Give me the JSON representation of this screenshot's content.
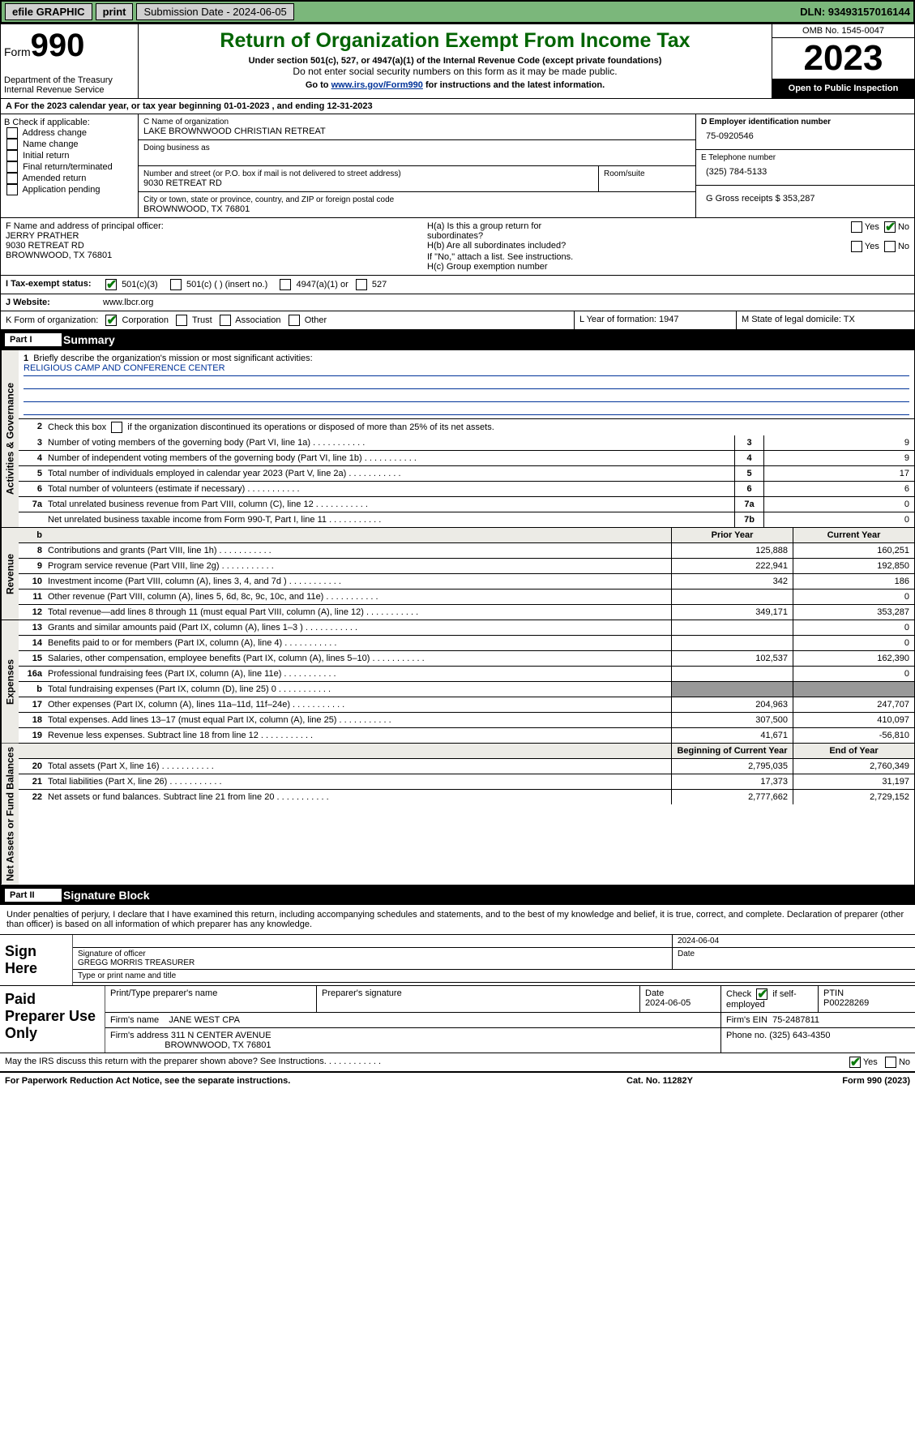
{
  "topbar": {
    "efile": "efile GRAPHIC",
    "print": "print",
    "subm": "Submission Date - 2024-06-05",
    "dln": "DLN: 93493157016144"
  },
  "header": {
    "form_word": "Form",
    "form_num": "990",
    "title": "Return of Organization Exempt From Income Tax",
    "sub1": "Under section 501(c), 527, or 4947(a)(1) of the Internal Revenue Code (except private foundations)",
    "sub2": "Do not enter social security numbers on this form as it may be made public.",
    "sub3a": "Go to ",
    "sub3link": "www.irs.gov/Form990",
    "sub3b": " for instructions and the latest information.",
    "dept": "Department of the Treasury\nInternal Revenue Service",
    "omb": "OMB No. 1545-0047",
    "year": "2023",
    "pub": "Open to Public Inspection"
  },
  "rowA": "A For the 2023 calendar year, or tax year beginning 01-01-2023    , and ending 12-31-2023",
  "boxB": {
    "hdr": "B Check if applicable:",
    "i1": "Address change",
    "i2": "Name change",
    "i3": "Initial return",
    "i4": "Final return/terminated",
    "i5": "Amended return",
    "i6": "Application pending"
  },
  "boxC": {
    "lbl": "C Name of organization",
    "val": "LAKE BROWNWOOD CHRISTIAN RETREAT",
    "dba": "Doing business as"
  },
  "boxAddr": {
    "lbl": "Number and street (or P.O. box if mail is not delivered to street address)",
    "room": "Room/suite",
    "street": "9030 RETREAT RD",
    "citylbl": "City or town, state or province, country, and ZIP or foreign postal code",
    "city": "BROWNWOOD, TX  76801"
  },
  "boxD": {
    "lbl": "D Employer identification number",
    "val": "75-0920546"
  },
  "boxE": {
    "lbl": "E Telephone number",
    "val": "(325) 784-5133"
  },
  "boxG": {
    "lbl": "G Gross receipts $ 353,287"
  },
  "boxF": {
    "lbl": "F  Name and address of principal officer:",
    "l1": "JERRY PRATHER",
    "l2": "9030 RETREAT RD",
    "l3": "BROWNWOOD, TX  76801"
  },
  "boxH": {
    "a1": "H(a)  Is this a group return for",
    "a2": "        subordinates?",
    "b1": "H(b)  Are all subordinates included?",
    "b2": "If \"No,\" attach a list. See instructions.",
    "c": "H(c)  Group exemption number "
  },
  "taxexempt": {
    "lbl": "I    Tax-exempt status:",
    "o1": "501(c)(3)",
    "o2": "501(c) (  ) (insert no.)",
    "o3": "4947(a)(1) or",
    "o4": "527"
  },
  "website": {
    "lbl": "J   Website: ",
    "val": "www.lbcr.org"
  },
  "boxK": {
    "lbl": "K Form of organization:",
    "o1": "Corporation",
    "o2": "Trust",
    "o3": "Association",
    "o4": "Other"
  },
  "boxL": "L Year of formation: 1947",
  "boxM": "M State of legal domicile: TX",
  "part1": {
    "no": "Part I",
    "name": "Summary"
  },
  "sections": {
    "gov": "Activities & Governance",
    "rev": "Revenue",
    "exp": "Expenses",
    "net": "Net Assets or Fund Balances"
  },
  "q1": {
    "lbl": "Briefly describe the organization's mission or most significant activities:",
    "val": "RELIGIOUS CAMP AND CONFERENCE CENTER"
  },
  "q2": "Check this box       if the organization discontinued its operations or disposed of more than 25% of its net assets.",
  "gov_rows": [
    {
      "n": "3",
      "d": "Number of voting members of the governing body (Part VI, line 1a)",
      "c": "3",
      "v": "9"
    },
    {
      "n": "4",
      "d": "Number of independent voting members of the governing body (Part VI, line 1b)",
      "c": "4",
      "v": "9"
    },
    {
      "n": "5",
      "d": "Total number of individuals employed in calendar year 2023 (Part V, line 2a)",
      "c": "5",
      "v": "17"
    },
    {
      "n": "6",
      "d": "Total number of volunteers (estimate if necessary)",
      "c": "6",
      "v": "6"
    },
    {
      "n": "7a",
      "d": "Total unrelated business revenue from Part VIII, column (C), line 12",
      "c": "7a",
      "v": "0"
    },
    {
      "n": "",
      "d": "Net unrelated business taxable income from Form 990-T, Part I, line 11",
      "c": "7b",
      "v": "0"
    }
  ],
  "col_prior": "Prior Year",
  "col_curr": "Current Year",
  "rev_rows": [
    {
      "n": "8",
      "d": "Contributions and grants (Part VIII, line 1h)",
      "p": "125,888",
      "c": "160,251"
    },
    {
      "n": "9",
      "d": "Program service revenue (Part VIII, line 2g)",
      "p": "222,941",
      "c": "192,850"
    },
    {
      "n": "10",
      "d": "Investment income (Part VIII, column (A), lines 3, 4, and 7d )",
      "p": "342",
      "c": "186"
    },
    {
      "n": "11",
      "d": "Other revenue (Part VIII, column (A), lines 5, 6d, 8c, 9c, 10c, and 11e)",
      "p": "",
      "c": "0"
    },
    {
      "n": "12",
      "d": "Total revenue—add lines 8 through 11 (must equal Part VIII, column (A), line 12)",
      "p": "349,171",
      "c": "353,287"
    }
  ],
  "exp_rows": [
    {
      "n": "13",
      "d": "Grants and similar amounts paid (Part IX, column (A), lines 1–3 )",
      "p": "",
      "c": "0"
    },
    {
      "n": "14",
      "d": "Benefits paid to or for members (Part IX, column (A), line 4)",
      "p": "",
      "c": "0"
    },
    {
      "n": "15",
      "d": "Salaries, other compensation, employee benefits (Part IX, column (A), lines 5–10)",
      "p": "102,537",
      "c": "162,390"
    },
    {
      "n": "16a",
      "d": "Professional fundraising fees (Part IX, column (A), line 11e)",
      "p": "",
      "c": "0"
    },
    {
      "n": "b",
      "d": "Total fundraising expenses (Part IX, column (D), line 25) 0",
      "p": "shade",
      "c": "shade"
    },
    {
      "n": "17",
      "d": "Other expenses (Part IX, column (A), lines 11a–11d, 11f–24e)",
      "p": "204,963",
      "c": "247,707"
    },
    {
      "n": "18",
      "d": "Total expenses. Add lines 13–17 (must equal Part IX, column (A), line 25)",
      "p": "307,500",
      "c": "410,097"
    },
    {
      "n": "19",
      "d": "Revenue less expenses. Subtract line 18 from line 12",
      "p": "41,671",
      "c": "-56,810"
    }
  ],
  "net_hdr": {
    "p": "Beginning of Current Year",
    "c": "End of Year"
  },
  "net_rows": [
    {
      "n": "20",
      "d": "Total assets (Part X, line 16)",
      "p": "2,795,035",
      "c": "2,760,349"
    },
    {
      "n": "21",
      "d": "Total liabilities (Part X, line 26)",
      "p": "17,373",
      "c": "31,197"
    },
    {
      "n": "22",
      "d": "Net assets or fund balances. Subtract line 21 from line 20",
      "p": "2,777,662",
      "c": "2,729,152"
    }
  ],
  "part2": {
    "no": "Part II",
    "name": "Signature Block"
  },
  "sig": {
    "intro": "Under penalties of perjury, I declare that I have examined this return, including accompanying schedules and statements, and to the best of my knowledge and belief, it is true, correct, and complete. Declaration of preparer (other than officer) is based on all information of which preparer has any knowledge.",
    "left": "Sign Here",
    "date": "2024-06-04",
    "siglbl": "Signature of officer",
    "datelbl": "Date",
    "name": "GREGG MORRIS  TREASURER",
    "typelbl": "Type or print name and title"
  },
  "prep": {
    "left": "Paid Preparer Use Only",
    "h1": "Print/Type preparer's name",
    "h2": "Preparer's signature",
    "h3": "Date",
    "h3v": "2024-06-05",
    "h4a": "Check",
    "h4b": "if self-employed",
    "h5": "PTIN",
    "h5v": "P00228269",
    "r2a": "Firm's name",
    "r2av": "JANE WEST CPA",
    "r2b": "Firm's EIN",
    "r2bv": "75-2487811",
    "r3a": "Firm's address",
    "r3av1": "311 N CENTER AVENUE",
    "r3av2": "BROWNWOOD, TX  76801",
    "r3b": "Phone no. (325) 643-4350"
  },
  "ask": "May the IRS discuss this return with the preparer shown above? See Instructions.",
  "yes": "Yes",
  "no": "No",
  "footer": {
    "f1": "For Paperwork Reduction Act Notice, see the separate instructions.",
    "f2": "Cat. No. 11282Y",
    "f3a": "Form ",
    "f3b": "990",
    "f3c": " (2023)"
  }
}
